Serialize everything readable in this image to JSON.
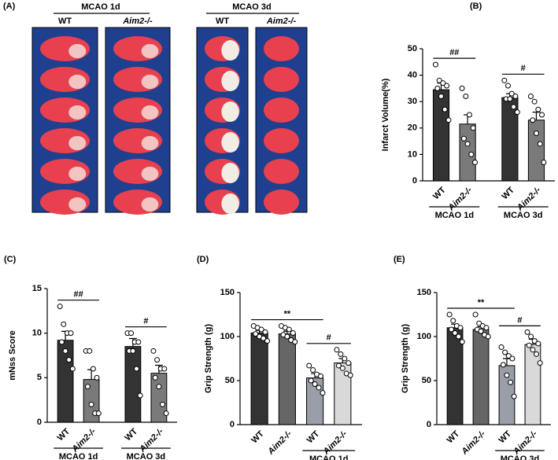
{
  "panel_a": {
    "label": "(A)",
    "groups": [
      {
        "title": "MCAO 1d",
        "columns": [
          "WT",
          "Aim2-/-"
        ]
      },
      {
        "title": "MCAO 3d",
        "columns": [
          "WT",
          "Aim2-/-"
        ]
      }
    ]
  },
  "chart_data": [
    {
      "type": "bar",
      "panel_label": "(B)",
      "ylabel": "Infarct Volume(%)",
      "categories": [
        "WT",
        "Aim2-/-",
        "WT",
        "Aim2-/-"
      ],
      "colors": [
        "#333333",
        "#7a7a7a",
        "#333333",
        "#7a7a7a"
      ],
      "values": [
        34.5,
        21.5,
        31.5,
        23
      ],
      "errors": [
        2.5,
        3.5,
        1.5,
        3
      ],
      "points": [
        [
          44,
          38,
          37,
          36,
          35,
          32,
          27,
          23
        ],
        [
          35,
          32,
          25,
          20,
          16,
          14,
          10,
          7
        ],
        [
          38,
          36,
          33,
          32,
          31,
          31,
          28,
          26
        ],
        [
          32,
          30,
          27,
          25,
          23,
          18,
          14,
          7
        ]
      ],
      "ylim": [
        0,
        50
      ],
      "yticks": [
        0,
        10,
        20,
        30,
        40,
        50
      ],
      "groups": [
        {
          "label": "MCAO 1d"
        },
        {
          "label": "MCAO 3d"
        }
      ],
      "annotations": [
        "##",
        "#"
      ]
    },
    {
      "type": "bar",
      "panel_label": "(C)",
      "ylabel": "mNss Score",
      "categories": [
        "WT",
        "Aim2-/-",
        "WT",
        "Aim2-/-"
      ],
      "colors": [
        "#333333",
        "#7a7a7a",
        "#333333",
        "#7a7a7a"
      ],
      "values": [
        9.2,
        4.8,
        8.5,
        5.5
      ],
      "errors": [
        1,
        1.1,
        0.9,
        0.9
      ],
      "points": [
        [
          13,
          11,
          10,
          10,
          9,
          8,
          7,
          6
        ],
        [
          8,
          8,
          6,
          5,
          4,
          2,
          1,
          1
        ],
        [
          10,
          10,
          9,
          9,
          8,
          8,
          6,
          3
        ],
        [
          8,
          7,
          6,
          6,
          5,
          4,
          2,
          1
        ]
      ],
      "ylim": [
        0,
        15
      ],
      "yticks": [
        0,
        5,
        10,
        15
      ],
      "groups": [
        {
          "label": "MCAO 1d"
        },
        {
          "label": "MCAO 3d"
        }
      ],
      "annotations": [
        "##",
        "#"
      ]
    },
    {
      "type": "bar",
      "panel_label": "(D)",
      "ylabel": "Grip Strength (g)",
      "categories": [
        "WT",
        "Aim2-/-",
        "WT",
        "Aim2-/-"
      ],
      "colors": [
        "#333333",
        "#666666",
        "#9a9ea8",
        "#d9d9d9"
      ],
      "values": [
        104,
        103,
        53,
        70
      ],
      "errors": [
        3,
        3,
        5,
        5
      ],
      "points": [
        [
          112,
          110,
          108,
          105,
          103,
          100,
          98,
          95
        ],
        [
          112,
          110,
          108,
          104,
          102,
          100,
          96,
          94
        ],
        [
          67,
          62,
          57,
          55,
          50,
          46,
          42,
          36
        ],
        [
          85,
          80,
          75,
          70,
          67,
          64,
          58,
          56
        ]
      ],
      "ylim": [
        0,
        150
      ],
      "yticks": [
        0,
        50,
        100,
        150
      ],
      "groups": [
        {
          "label": "MCAO 1d"
        }
      ],
      "annotations": [
        "**",
        "#"
      ]
    },
    {
      "type": "bar",
      "panel_label": "(E)",
      "ylabel": "Grip Strength (g)",
      "categories": [
        "WT",
        "Aim2-/-",
        "WT",
        "Aim2-/-"
      ],
      "colors": [
        "#333333",
        "#666666",
        "#9a9ea8",
        "#d9d9d9"
      ],
      "values": [
        110,
        108,
        67,
        91
      ],
      "errors": [
        4,
        3,
        8,
        6
      ],
      "points": [
        [
          125,
          118,
          112,
          110,
          108,
          104,
          100,
          94
        ],
        [
          125,
          115,
          112,
          110,
          108,
          106,
          102,
          100
        ],
        [
          88,
          82,
          78,
          75,
          68,
          56,
          48,
          32
        ],
        [
          105,
          100,
          95,
          92,
          90,
          85,
          80,
          70
        ]
      ],
      "ylim": [
        0,
        150
      ],
      "yticks": [
        0,
        50,
        100,
        150
      ],
      "groups": [
        {
          "label": "MCAO 3d"
        }
      ],
      "annotations": [
        "**",
        "#"
      ]
    }
  ]
}
